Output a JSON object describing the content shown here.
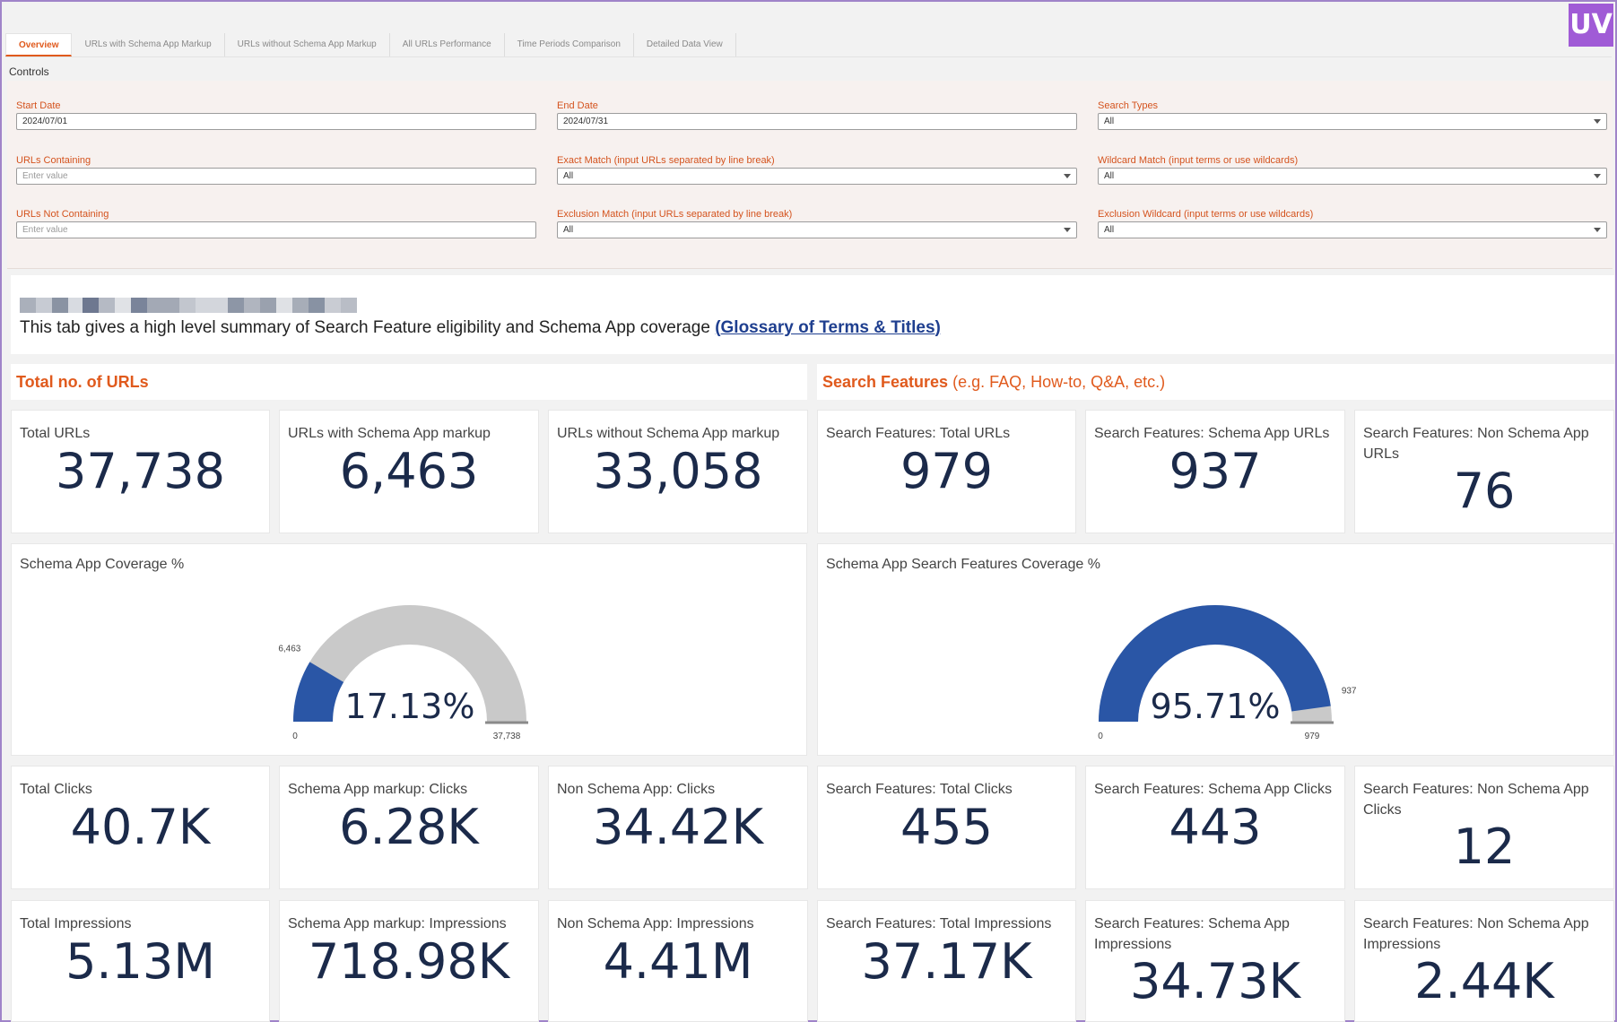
{
  "tabs": [
    {
      "label": "Overview",
      "active": true
    },
    {
      "label": "URLs with Schema App Markup",
      "active": false
    },
    {
      "label": "URLs without Schema App Markup",
      "active": false
    },
    {
      "label": "All URLs Performance",
      "active": false
    },
    {
      "label": "Time Periods Comparison",
      "active": false
    },
    {
      "label": "Detailed Data View",
      "active": false
    }
  ],
  "logo": "UV",
  "controls": {
    "label": "Controls",
    "start_date": {
      "label": "Start Date",
      "value": "2024/07/01"
    },
    "end_date": {
      "label": "End Date",
      "value": "2024/07/31"
    },
    "search_types": {
      "label": "Search Types",
      "value": "All"
    },
    "urls_containing": {
      "label": "URLs Containing",
      "placeholder": "Enter value"
    },
    "exact_match": {
      "label": "Exact Match (input URLs separated by line break)",
      "value": "All"
    },
    "wildcard_match": {
      "label": "Wildcard Match (input terms or use wildcards)",
      "value": "All"
    },
    "urls_not_containing": {
      "label": "URLs Not Containing",
      "placeholder": "Enter value"
    },
    "exclusion_match": {
      "label": "Exclusion Match (input URLs separated by line break)",
      "value": "All"
    },
    "exclusion_wildcard": {
      "label": "Exclusion Wildcard (input terms or use wildcards)",
      "value": "All"
    }
  },
  "intro": {
    "text": "This tab gives a high level summary of Search Feature eligibility and Schema App coverage ",
    "link_open": "(",
    "link": "Glossary of Terms & Titles",
    "link_close": ")"
  },
  "sections": {
    "urls": {
      "title": "Total no. of URLs"
    },
    "features": {
      "title": "Search Features",
      "subtitle": " (e.g. FAQ, How-to, Q&A, etc.)"
    }
  },
  "kpis_urls": [
    {
      "title": "Total URLs",
      "value": "37,738"
    },
    {
      "title": "URLs with Schema App markup",
      "value": "6,463"
    },
    {
      "title": "URLs without Schema App markup",
      "value": "33,058"
    },
    {
      "title": "Search Features: Total URLs",
      "value": "979"
    },
    {
      "title": "Search Features: Schema App URLs",
      "value": "937"
    },
    {
      "title": "Search Features: Non Schema App URLs",
      "value": "76"
    }
  ],
  "gauges": [
    {
      "title": "Schema App Coverage %",
      "value_label": "17.13%",
      "fraction": 0.1713,
      "marker_label": "6,463",
      "min_label": "0",
      "max_label": "37,738"
    },
    {
      "title": "Schema App Search Features Coverage %",
      "value_label": "95.71%",
      "fraction": 0.9571,
      "marker_label": "937",
      "min_label": "0",
      "max_label": "979"
    }
  ],
  "kpis_clicks": [
    {
      "title": "Total Clicks",
      "value": "40.7K"
    },
    {
      "title": "Schema App markup: Clicks",
      "value": "6.28K"
    },
    {
      "title": "Non Schema App: Clicks",
      "value": "34.42K"
    },
    {
      "title": "Search Features: Total Clicks",
      "value": "455"
    },
    {
      "title": "Search Features: Schema App Clicks",
      "value": "443"
    },
    {
      "title": "Search Features: Non Schema App Clicks",
      "value": "12"
    }
  ],
  "kpis_impressions": [
    {
      "title": "Total Impressions",
      "value": "5.13M"
    },
    {
      "title": "Schema App markup: Impressions",
      "value": "718.98K"
    },
    {
      "title": "Non Schema App: Impressions",
      "value": "4.41M"
    },
    {
      "title": "Search Features: Total Impressions",
      "value": "37.17K"
    },
    {
      "title": "Search Features: Schema App Impressions",
      "value": "34.73K"
    },
    {
      "title": "Search Features: Non Schema App Impressions",
      "value": "2.44K"
    }
  ],
  "colors": {
    "accent": "#e05a1d",
    "gauge_fill": "#2a56a6",
    "gauge_track": "#c9c9c9",
    "value_text": "#1b2a4a",
    "logo_bg": "#a05bd6"
  }
}
